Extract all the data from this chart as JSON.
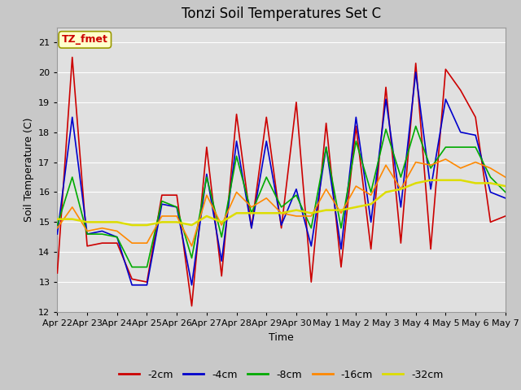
{
  "title": "Tonzi Soil Temperatures Set C",
  "xlabel": "Time",
  "ylabel": "Soil Temperature (C)",
  "ylim": [
    12.0,
    21.5
  ],
  "yticks": [
    12.0,
    13.0,
    14.0,
    15.0,
    16.0,
    17.0,
    18.0,
    19.0,
    20.0,
    21.0
  ],
  "xtick_labels": [
    "Apr 22",
    "Apr 23",
    "Apr 24",
    "Apr 25",
    "Apr 26",
    "Apr 27",
    "Apr 28",
    "Apr 29",
    "Apr 30",
    "May 1",
    "May 2",
    "May 3",
    "May 4",
    "May 5",
    "May 6",
    "May 7"
  ],
  "annotation_label": "TZ_fmet",
  "annotation_color": "#cc0000",
  "annotation_bg": "#ffffcc",
  "line_colors": {
    "-2cm": "#cc0000",
    "-4cm": "#0000cc",
    "-8cm": "#00aa00",
    "-16cm": "#ff8800",
    "-32cm": "#dddd00"
  },
  "line_widths": {
    "-2cm": 1.2,
    "-4cm": 1.2,
    "-8cm": 1.2,
    "-16cm": 1.2,
    "-32cm": 1.8
  },
  "fig_bg_color": "#c8c8c8",
  "plot_bg_color": "#e0e0e0",
  "grid_color": "#ffffff",
  "title_fontsize": 12,
  "label_fontsize": 9,
  "tick_fontsize": 8,
  "d_2cm": [
    13.3,
    20.5,
    14.2,
    14.3,
    14.3,
    13.1,
    13.0,
    15.9,
    15.9,
    12.2,
    17.5,
    13.2,
    18.6,
    14.8,
    18.5,
    14.8,
    19.0,
    13.0,
    18.3,
    13.5,
    18.2,
    14.1,
    19.5,
    14.3,
    20.3,
    14.1,
    20.1,
    19.4,
    18.5,
    15.0,
    15.2
  ],
  "d_4cm": [
    14.6,
    18.5,
    14.6,
    14.7,
    14.5,
    12.9,
    12.9,
    15.6,
    15.5,
    12.9,
    16.6,
    13.7,
    17.7,
    14.8,
    17.7,
    14.9,
    16.1,
    14.2,
    17.5,
    14.1,
    18.5,
    15.0,
    19.1,
    15.5,
    20.0,
    16.1,
    19.1,
    18.0,
    17.9,
    16.0,
    15.8
  ],
  "d_8cm": [
    14.9,
    16.5,
    14.6,
    14.6,
    14.5,
    13.5,
    13.5,
    15.7,
    15.5,
    13.8,
    16.5,
    14.5,
    17.2,
    15.3,
    16.5,
    15.5,
    15.9,
    14.8,
    17.5,
    14.8,
    17.7,
    16.0,
    18.1,
    16.5,
    18.2,
    16.8,
    17.5,
    17.5,
    17.5,
    16.5,
    16.0
  ],
  "d_16cm": [
    14.8,
    15.5,
    14.7,
    14.8,
    14.7,
    14.3,
    14.3,
    15.2,
    15.2,
    14.2,
    15.9,
    14.9,
    16.0,
    15.5,
    15.8,
    15.3,
    15.2,
    15.2,
    16.1,
    15.3,
    16.2,
    15.9,
    16.9,
    16.1,
    17.0,
    16.9,
    17.1,
    16.8,
    17.0,
    16.8,
    16.5
  ],
  "d_32cm": [
    15.1,
    15.1,
    15.0,
    15.0,
    15.0,
    14.9,
    14.9,
    15.0,
    15.0,
    14.9,
    15.2,
    15.0,
    15.3,
    15.3,
    15.3,
    15.3,
    15.4,
    15.3,
    15.4,
    15.4,
    15.5,
    15.6,
    16.0,
    16.1,
    16.3,
    16.4,
    16.4,
    16.4,
    16.3,
    16.3,
    16.2
  ]
}
